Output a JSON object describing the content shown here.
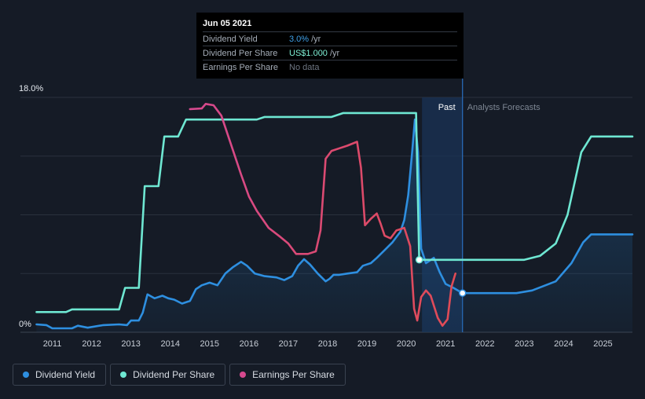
{
  "tooltip": {
    "date": "Jun 05 2021",
    "rows": [
      {
        "label": "Dividend Yield",
        "value": "3.0%",
        "unit": "/yr",
        "color": "#3fa0e8"
      },
      {
        "label": "Dividend Per Share",
        "value": "US$1.000",
        "unit": "/yr",
        "color": "#7ff0d5"
      },
      {
        "label": "Earnings Per Share",
        "value": "No data",
        "unit": "",
        "color": "#6e7682"
      }
    ]
  },
  "regions": {
    "past_label": "Past",
    "forecast_label": "Analysts Forecasts"
  },
  "legend": [
    {
      "label": "Dividend Yield",
      "color": "#2e8fe0"
    },
    {
      "label": "Dividend Per Share",
      "color": "#6ee7d2"
    },
    {
      "label": "Earnings Per Share",
      "color": "#d6498f"
    }
  ],
  "chart_data": {
    "type": "line",
    "y_axis": {
      "min": 0,
      "max": 18,
      "tick_labels": [
        "0%",
        "18.0%"
      ]
    },
    "x_axis": {
      "range": [
        2010.55,
        2025.75
      ],
      "ticks": [
        2011,
        2012,
        2013,
        2014,
        2015,
        2016,
        2017,
        2018,
        2019,
        2020,
        2021,
        2022,
        2023,
        2024,
        2025
      ]
    },
    "past_region": [
      2020.4,
      2021.43
    ],
    "highlight_x": 2021.43,
    "series": [
      {
        "name": "Dividend Yield",
        "color": "#2e8fe0",
        "fill": true,
        "marker_x": 2021.43,
        "points": [
          [
            2010.6,
            0.6
          ],
          [
            2010.85,
            0.55
          ],
          [
            2011.0,
            0.3
          ],
          [
            2011.5,
            0.3
          ],
          [
            2011.65,
            0.5
          ],
          [
            2011.9,
            0.35
          ],
          [
            2012.3,
            0.55
          ],
          [
            2012.7,
            0.6
          ],
          [
            2012.9,
            0.55
          ],
          [
            2013.0,
            0.9
          ],
          [
            2013.2,
            0.9
          ],
          [
            2013.3,
            1.5
          ],
          [
            2013.42,
            2.9
          ],
          [
            2013.6,
            2.6
          ],
          [
            2013.8,
            2.8
          ],
          [
            2013.95,
            2.6
          ],
          [
            2014.1,
            2.5
          ],
          [
            2014.3,
            2.2
          ],
          [
            2014.5,
            2.4
          ],
          [
            2014.65,
            3.3
          ],
          [
            2014.8,
            3.6
          ],
          [
            2015.0,
            3.8
          ],
          [
            2015.2,
            3.6
          ],
          [
            2015.4,
            4.5
          ],
          [
            2015.6,
            5.0
          ],
          [
            2015.8,
            5.4
          ],
          [
            2015.95,
            5.1
          ],
          [
            2016.15,
            4.5
          ],
          [
            2016.4,
            4.3
          ],
          [
            2016.7,
            4.2
          ],
          [
            2016.9,
            4.0
          ],
          [
            2017.1,
            4.3
          ],
          [
            2017.25,
            5.1
          ],
          [
            2017.4,
            5.6
          ],
          [
            2017.55,
            5.2
          ],
          [
            2017.75,
            4.5
          ],
          [
            2017.95,
            3.9
          ],
          [
            2018.05,
            4.1
          ],
          [
            2018.15,
            4.4
          ],
          [
            2018.3,
            4.4
          ],
          [
            2018.5,
            4.5
          ],
          [
            2018.75,
            4.6
          ],
          [
            2018.9,
            5.1
          ],
          [
            2019.1,
            5.3
          ],
          [
            2019.25,
            5.7
          ],
          [
            2019.45,
            6.3
          ],
          [
            2019.65,
            6.9
          ],
          [
            2019.85,
            7.7
          ],
          [
            2019.95,
            8.6
          ],
          [
            2020.05,
            10.5
          ],
          [
            2020.15,
            13.8
          ],
          [
            2020.22,
            16.3
          ],
          [
            2020.3,
            13.8
          ],
          [
            2020.38,
            6.4
          ],
          [
            2020.5,
            5.3
          ],
          [
            2020.7,
            5.7
          ],
          [
            2020.85,
            4.6
          ],
          [
            2021.0,
            3.7
          ],
          [
            2021.2,
            3.4
          ],
          [
            2021.43,
            3.0
          ],
          [
            2021.8,
            3.0
          ],
          [
            2022.8,
            3.0
          ],
          [
            2023.2,
            3.2
          ],
          [
            2023.8,
            3.9
          ],
          [
            2024.2,
            5.3
          ],
          [
            2024.5,
            6.9
          ],
          [
            2024.7,
            7.5
          ],
          [
            2025.75,
            7.5
          ]
        ]
      },
      {
        "name": "Dividend Per Share",
        "color": "#6ee7d2",
        "fill": false,
        "marker_x": 2021.43,
        "points": [
          [
            2010.6,
            1.55
          ],
          [
            2011.35,
            1.55
          ],
          [
            2011.5,
            1.75
          ],
          [
            2012.7,
            1.75
          ],
          [
            2012.85,
            3.4
          ],
          [
            2013.2,
            3.4
          ],
          [
            2013.35,
            11.2
          ],
          [
            2013.7,
            11.2
          ],
          [
            2013.85,
            15.0
          ],
          [
            2014.2,
            15.0
          ],
          [
            2014.4,
            16.3
          ],
          [
            2016.2,
            16.3
          ],
          [
            2016.4,
            16.5
          ],
          [
            2017.8,
            16.5
          ],
          [
            2018.1,
            16.5
          ],
          [
            2018.4,
            16.8
          ],
          [
            2020.25,
            16.8
          ],
          [
            2020.33,
            5.55
          ],
          [
            2023.0,
            5.55
          ],
          [
            2023.4,
            5.85
          ],
          [
            2023.8,
            6.8
          ],
          [
            2024.1,
            9.0
          ],
          [
            2024.45,
            13.8
          ],
          [
            2024.7,
            15.0
          ],
          [
            2025.75,
            15.0
          ]
        ]
      },
      {
        "name": "Earnings Per Share",
        "color": "#e04b55",
        "fill": false,
        "points": [
          [
            2014.5,
            17.1
          ],
          [
            2014.8,
            17.15
          ],
          [
            2014.9,
            17.5
          ],
          [
            2015.1,
            17.4
          ],
          [
            2015.3,
            16.6
          ],
          [
            2015.5,
            14.8
          ],
          [
            2015.8,
            12.1
          ],
          [
            2016.0,
            10.4
          ],
          [
            2016.2,
            9.3
          ],
          [
            2016.5,
            8.0
          ],
          [
            2016.8,
            7.3
          ],
          [
            2017.0,
            6.8
          ],
          [
            2017.2,
            6.0
          ],
          [
            2017.5,
            6.0
          ],
          [
            2017.7,
            6.2
          ],
          [
            2017.82,
            7.8
          ],
          [
            2017.95,
            13.3
          ],
          [
            2018.1,
            13.9
          ],
          [
            2018.3,
            14.1
          ],
          [
            2018.5,
            14.3
          ],
          [
            2018.75,
            14.6
          ],
          [
            2018.85,
            12.6
          ],
          [
            2018.95,
            8.2
          ],
          [
            2019.1,
            8.7
          ],
          [
            2019.25,
            9.1
          ],
          [
            2019.35,
            8.3
          ],
          [
            2019.45,
            7.4
          ],
          [
            2019.6,
            7.2
          ],
          [
            2019.75,
            7.8
          ],
          [
            2019.95,
            8.0
          ],
          [
            2020.1,
            6.6
          ],
          [
            2020.2,
            1.8
          ],
          [
            2020.28,
            0.9
          ],
          [
            2020.38,
            2.7
          ],
          [
            2020.5,
            3.2
          ],
          [
            2020.62,
            2.8
          ],
          [
            2020.8,
            1.1
          ],
          [
            2020.92,
            0.5
          ],
          [
            2021.05,
            1.0
          ],
          [
            2021.15,
            3.5
          ],
          [
            2021.25,
            4.5
          ]
        ]
      }
    ]
  }
}
